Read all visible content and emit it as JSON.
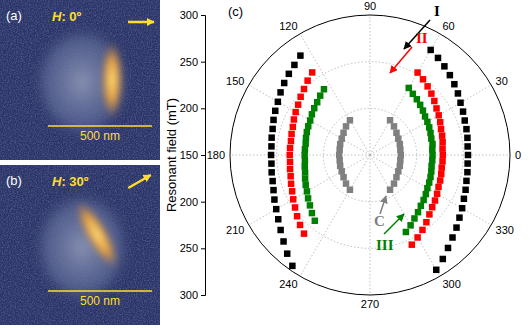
{
  "chart_data": {
    "type": "polar",
    "title": "(c)",
    "y_label": "Resonant field (mT)",
    "xlim": [
      0,
      360
    ],
    "xticks": [
      0,
      30,
      60,
      90,
      120,
      150,
      180,
      210,
      240,
      270,
      300,
      330
    ],
    "ylim": [
      150,
      300
    ],
    "yticks": [
      150,
      200,
      250,
      300
    ],
    "grid": true,
    "marker": "square",
    "series": [
      {
        "name": "I",
        "color": "#000000",
        "x": [
          300,
          305,
          310,
          315,
          320,
          325,
          330,
          335,
          340,
          345,
          350,
          355,
          0,
          5,
          10,
          15,
          20,
          25,
          30,
          35,
          40,
          45,
          50,
          55,
          60,
          null,
          125,
          130,
          135,
          140,
          145,
          150,
          155,
          160,
          165,
          170,
          175,
          180,
          185,
          190,
          195,
          200,
          205,
          210,
          215,
          220,
          225,
          230,
          235
        ],
        "values": [
          292,
          286,
          280,
          275,
          271,
          267,
          264,
          261,
          259,
          257,
          256,
          255,
          255,
          255,
          256,
          257,
          258,
          260,
          262,
          265,
          268,
          271,
          274,
          277,
          280,
          null,
          280,
          276,
          273,
          270,
          267,
          264,
          262,
          260,
          258,
          257,
          256,
          256,
          256,
          257,
          258,
          260,
          263,
          266,
          270,
          275,
          281,
          288,
          295
        ]
      },
      {
        "name": "II",
        "color": "#ff0000",
        "x": [
          295,
          300,
          305,
          310,
          315,
          320,
          325,
          330,
          335,
          340,
          345,
          350,
          355,
          0,
          5,
          10,
          15,
          20,
          25,
          30,
          35,
          40,
          45,
          50,
          55,
          60,
          null,
          125,
          130,
          135,
          140,
          145,
          150,
          155,
          160,
          165,
          170,
          175,
          180,
          185,
          190,
          195,
          200,
          205,
          210,
          215,
          220,
          225,
          230
        ],
        "values": [
          256,
          252,
          248,
          244,
          240,
          237,
          235,
          233,
          231,
          230,
          229,
          228,
          228,
          228,
          228,
          229,
          230,
          231,
          233,
          235,
          237,
          240,
          243,
          246,
          249,
          252,
          null,
          258,
          254,
          250,
          247,
          244,
          242,
          240,
          238,
          237,
          236,
          236,
          236,
          236,
          237,
          238,
          240,
          242,
          245,
          248,
          252,
          256,
          260
        ]
      },
      {
        "name": "III",
        "color": "#008000",
        "x": [
          295,
          300,
          305,
          310,
          315,
          320,
          325,
          330,
          335,
          340,
          345,
          350,
          355,
          0,
          5,
          10,
          15,
          20,
          25,
          30,
          35,
          40,
          45,
          50,
          55,
          60,
          null,
          125,
          130,
          135,
          140,
          145,
          150,
          155,
          160,
          165,
          170,
          175,
          180,
          185,
          190,
          195,
          200,
          205,
          210,
          215,
          220,
          225,
          230
        ],
        "values": [
          241,
          237,
          233,
          230,
          227,
          225,
          223,
          221,
          220,
          219,
          218,
          217,
          217,
          217,
          217,
          218,
          218,
          219,
          220,
          221,
          222,
          224,
          226,
          228,
          230,
          233,
          null,
          236,
          233,
          230,
          228,
          226,
          224,
          223,
          222,
          221,
          220,
          220,
          220,
          220,
          221,
          222,
          224,
          226,
          228,
          231,
          234,
          238,
          242
        ]
      },
      {
        "name": "C",
        "color": "#808080",
        "x": [
          300,
          310,
          320,
          330,
          340,
          350,
          0,
          10,
          20,
          30,
          40,
          50,
          60,
          null,
          120,
          130,
          140,
          150,
          160,
          170,
          180,
          190,
          200,
          210,
          220,
          230,
          240
        ],
        "values": [
          193,
          190,
          187,
          185,
          184,
          183,
          183,
          183,
          184,
          185,
          187,
          190,
          193,
          null,
          193,
          190,
          187,
          185,
          184,
          183,
          183,
          183,
          184,
          185,
          187,
          190,
          193
        ]
      }
    ]
  },
  "panels": [
    {
      "label": "(a)",
      "field_text": "H: 0º",
      "field_angle": 0,
      "scale_bar": "500 nm"
    },
    {
      "label": "(b)",
      "field_text": "H: 30º",
      "field_angle": 30,
      "scale_bar": "500 nm"
    }
  ]
}
